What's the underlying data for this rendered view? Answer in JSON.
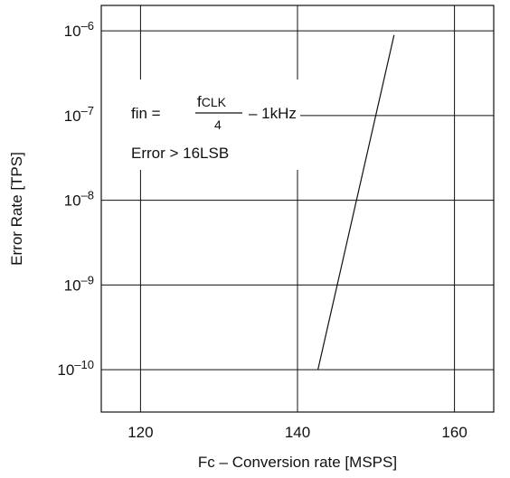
{
  "chart_data": {
    "type": "line",
    "title": "",
    "xlabel": "Fc – Conversion rate [MSPS]",
    "ylabel": "Error Rate [TPS]",
    "xlim": [
      115,
      165
    ],
    "ylim_exp": [
      -10.5,
      -5.7
    ],
    "y_scale": "log",
    "grid": true,
    "x_ticks": [
      120,
      140,
      160
    ],
    "x_tick_labels": [
      "120",
      "140",
      "160"
    ],
    "y_ticks_exp": [
      -10,
      -9,
      -8,
      -7,
      -6
    ],
    "y_tick_bases": [
      "10",
      "10",
      "10",
      "10",
      "10"
    ],
    "y_tick_exponents": [
      "–10",
      "–9",
      "–8",
      "–7",
      "–6"
    ],
    "series": [
      {
        "x": [
          142.6,
          152.3
        ],
        "y_exp": [
          -10,
          -6.05
        ]
      }
    ],
    "annotation": {
      "formula_lhs": "fin =",
      "numerator_main": "f",
      "numerator_sub": "CLK",
      "denominator": "4",
      "formula_rhs": "– 1kHz",
      "condition": "Error > 16LSB"
    }
  }
}
